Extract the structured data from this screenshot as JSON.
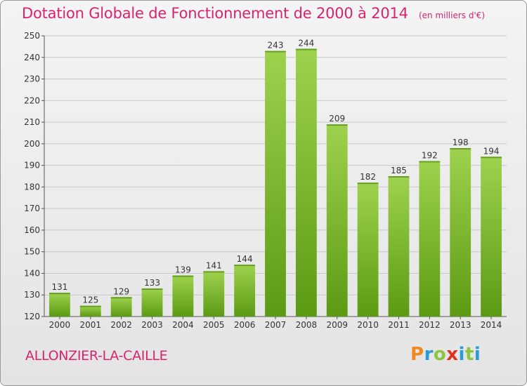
{
  "header": {
    "title": "Dotation Globale de Fonctionnement de 2000 à 2014",
    "subtitle": "(en milliers d'€)"
  },
  "footer": {
    "commune": "ALLONZIER-LA-CAILLE",
    "logo_letters": [
      "P",
      "r",
      "o",
      "x",
      "i",
      "t",
      "i"
    ],
    "logo_colors": [
      "#f08a1c",
      "#2a9ad8",
      "#8cc63f",
      "#e0301e",
      "#2a9ad8",
      "#8cc63f",
      "#2a9ad8"
    ]
  },
  "chart_data": {
    "type": "bar",
    "categories": [
      "2000",
      "2001",
      "2002",
      "2003",
      "2004",
      "2005",
      "2006",
      "2007",
      "2008",
      "2009",
      "2010",
      "2011",
      "2012",
      "2013",
      "2014"
    ],
    "values": [
      131,
      125,
      129,
      133,
      139,
      141,
      144,
      243,
      244,
      209,
      182,
      185,
      192,
      198,
      194
    ],
    "ylim": [
      120,
      250
    ],
    "yticks": [
      120,
      130,
      140,
      150,
      160,
      170,
      180,
      190,
      200,
      210,
      220,
      230,
      240,
      250
    ],
    "grid": true,
    "bar_color_top": "#9ed24e",
    "bar_color_bottom": "#5c9a14"
  }
}
